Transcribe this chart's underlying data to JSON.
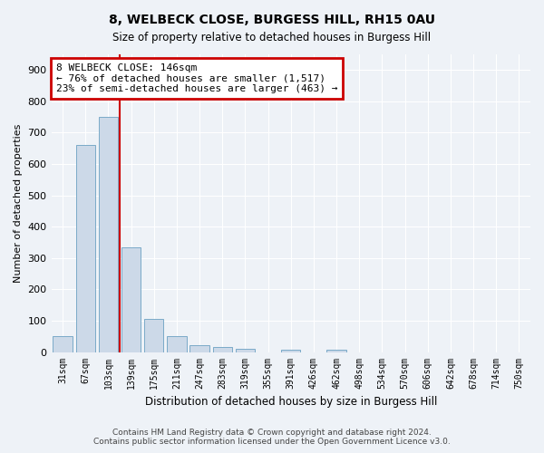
{
  "title": "8, WELBECK CLOSE, BURGESS HILL, RH15 0AU",
  "subtitle": "Size of property relative to detached houses in Burgess Hill",
  "xlabel": "Distribution of detached houses by size in Burgess Hill",
  "ylabel": "Number of detached properties",
  "bins": [
    "31sqm",
    "67sqm",
    "103sqm",
    "139sqm",
    "175sqm",
    "211sqm",
    "247sqm",
    "283sqm",
    "319sqm",
    "355sqm",
    "391sqm",
    "426sqm",
    "462sqm",
    "498sqm",
    "534sqm",
    "570sqm",
    "606sqm",
    "642sqm",
    "678sqm",
    "714sqm",
    "750sqm"
  ],
  "values": [
    50,
    660,
    750,
    335,
    105,
    50,
    22,
    16,
    10,
    0,
    8,
    0,
    8,
    0,
    0,
    0,
    0,
    0,
    0,
    0,
    0
  ],
  "bar_color": "#ccd9e8",
  "bar_edge_color": "#7aaac8",
  "property_line_color": "#cc0000",
  "annotation_line1": "8 WELBECK CLOSE: 146sqm",
  "annotation_line2": "← 76% of detached houses are smaller (1,517)",
  "annotation_line3": "23% of semi-detached houses are larger (463) →",
  "annotation_box_color": "#cc0000",
  "ylim": [
    0,
    950
  ],
  "yticks": [
    0,
    100,
    200,
    300,
    400,
    500,
    600,
    700,
    800,
    900
  ],
  "footer_line1": "Contains HM Land Registry data © Crown copyright and database right 2024.",
  "footer_line2": "Contains public sector information licensed under the Open Government Licence v3.0.",
  "bg_color": "#eef2f7",
  "plot_bg_color": "#eef2f7",
  "grid_color": "#ffffff",
  "title_fontsize": 10,
  "subtitle_fontsize": 8.5
}
